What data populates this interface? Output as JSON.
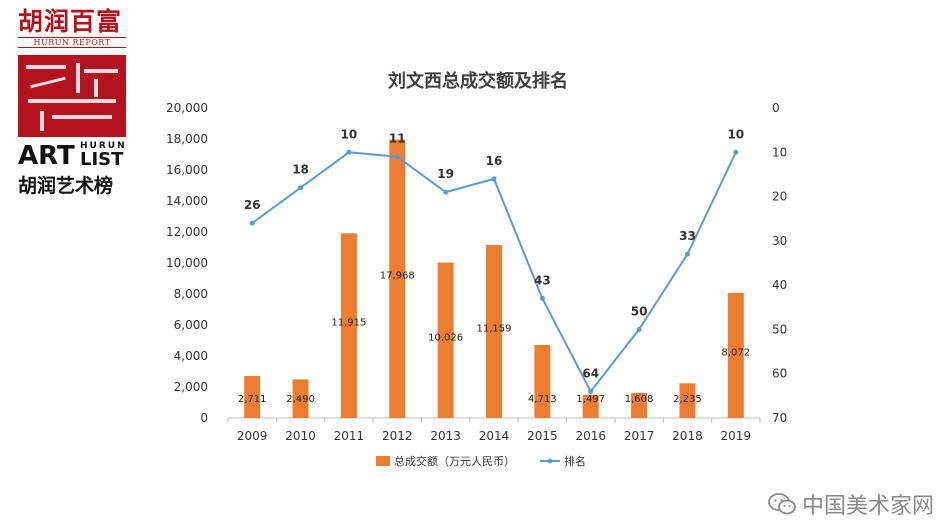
{
  "logo": {
    "brand_cn": "胡润百富",
    "brand_en": "HURUN REPORT",
    "art": "ART",
    "hurun": "HURUN",
    "list": "LIST",
    "list_cn": "胡润艺术榜"
  },
  "watermark": {
    "text": "中国美术家网",
    "icon": "wechat-icon"
  },
  "colors": {
    "bar": "#ed7d31",
    "line": "#5b9bd5"
  },
  "chart_data": {
    "type": "bar",
    "title": "刘文西总成交额及排名",
    "categories": [
      "2009",
      "2010",
      "2011",
      "2012",
      "2013",
      "2014",
      "2015",
      "2016",
      "2017",
      "2018",
      "2019"
    ],
    "series": [
      {
        "name": "总成交额（万元人民币）",
        "type": "bar",
        "axis": "left",
        "values": [
          2711,
          2490,
          11915,
          17968,
          10026,
          11159,
          4713,
          1497,
          1608,
          2235,
          8072
        ],
        "labels": [
          "2,711",
          "2,490",
          "11,915",
          "17,968",
          "10,026",
          "11,159",
          "4,713",
          "1,497",
          "1,608",
          "2,235",
          "8,072"
        ]
      },
      {
        "name": "排名",
        "type": "line",
        "axis": "right",
        "values": [
          26,
          18,
          10,
          11,
          19,
          16,
          43,
          64,
          50,
          33,
          10
        ]
      }
    ],
    "y_left": {
      "min": 0,
      "max": 20000,
      "step": 2000,
      "ticks": [
        "0",
        "2,000",
        "4,000",
        "6,000",
        "8,000",
        "10,000",
        "12,000",
        "14,000",
        "16,000",
        "18,000",
        "20,000"
      ]
    },
    "y_right": {
      "min": 0,
      "max": 70,
      "step": 10,
      "inverted": true,
      "ticks": [
        "0",
        "10",
        "20",
        "30",
        "40",
        "50",
        "60",
        "70"
      ]
    },
    "legend": "bottom",
    "grid": false
  }
}
